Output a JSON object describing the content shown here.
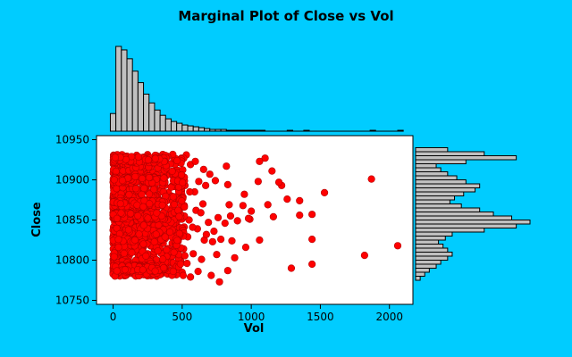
{
  "chart_data": {
    "type": "scatter",
    "title": "Marginal Plot of Close vs Vol",
    "xlabel": "Vol",
    "ylabel": "Close",
    "xlim": [
      -120,
      2170
    ],
    "ylim": [
      10745,
      10955
    ],
    "xticks": [
      "0",
      "500",
      "1000",
      "1500",
      "2000"
    ],
    "yticks": [
      "10750",
      "10800",
      "10850",
      "10900",
      "10950"
    ],
    "grid": false,
    "legend": "none",
    "colors": {
      "background": "#00ccff",
      "points": "#ff0000",
      "bars": "#c0c0c0"
    },
    "top_histogram": {
      "bin_width": 40,
      "bin_start": -20,
      "counts": [
        20,
        96,
        92,
        82,
        68,
        55,
        42,
        32,
        24,
        18,
        14,
        11,
        9,
        7,
        6,
        5,
        4,
        3,
        2,
        2,
        2,
        1,
        1,
        1,
        1,
        1,
        1,
        1,
        0,
        0,
        0,
        0,
        1,
        0,
        0,
        1,
        0,
        0,
        0,
        0,
        0,
        0,
        0,
        0,
        0,
        0,
        0,
        1,
        0,
        0,
        0,
        0,
        1
      ]
    },
    "right_histogram": {
      "bin_width": 5,
      "bin_start": 10775,
      "counts": [
        2,
        4,
        6,
        9,
        11,
        14,
        16,
        14,
        12,
        10,
        13,
        16,
        30,
        44,
        50,
        42,
        34,
        28,
        20,
        15,
        17,
        21,
        26,
        28,
        22,
        18,
        14,
        11,
        9,
        22,
        44,
        30,
        14
      ]
    },
    "points": [
      [
        1870,
        10901
      ],
      [
        2060,
        10818
      ],
      [
        1820,
        10806
      ],
      [
        1530,
        10884
      ],
      [
        1440,
        10857
      ],
      [
        1440,
        10826
      ],
      [
        1440,
        10795
      ],
      [
        1350,
        10874
      ],
      [
        1350,
        10856
      ],
      [
        1290,
        10790
      ],
      [
        1260,
        10876
      ],
      [
        1220,
        10893
      ],
      [
        1200,
        10897
      ],
      [
        1160,
        10854
      ],
      [
        1150,
        10911
      ],
      [
        1120,
        10869
      ],
      [
        1100,
        10927
      ],
      [
        1060,
        10923
      ],
      [
        1060,
        10825
      ],
      [
        1050,
        10898
      ],
      [
        1000,
        10861
      ],
      [
        990,
        10851
      ],
      [
        980,
        10852
      ],
      [
        960,
        10816
      ],
      [
        950,
        10882
      ],
      [
        940,
        10868
      ],
      [
        900,
        10849
      ],
      [
        880,
        10803
      ],
      [
        860,
        10824
      ],
      [
        850,
        10855
      ],
      [
        840,
        10869
      ],
      [
        830,
        10894
      ],
      [
        830,
        10787
      ],
      [
        820,
        10917
      ],
      [
        810,
        10846
      ],
      [
        780,
        10826
      ],
      [
        770,
        10773
      ],
      [
        760,
        10853
      ],
      [
        750,
        10807
      ],
      [
        740,
        10899
      ],
      [
        730,
        10836
      ],
      [
        720,
        10823
      ],
      [
        710,
        10781
      ],
      [
        700,
        10907
      ],
      [
        690,
        10847
      ],
      [
        670,
        10893
      ],
      [
        660,
        10825
      ],
      [
        650,
        10870
      ],
      [
        640,
        10801
      ],
      [
        620,
        10898
      ],
      [
        610,
        10839
      ],
      [
        600,
        10862
      ],
      [
        590,
        10885
      ],
      [
        580,
        10808
      ],
      [
        560,
        10919
      ],
      [
        560,
        10779
      ],
      [
        550,
        10850
      ],
      [
        540,
        10829
      ],
      [
        530,
        10931
      ],
      [
        520,
        10893
      ],
      [
        510,
        10814
      ],
      [
        500,
        10866
      ],
      [
        480,
        10784
      ],
      [
        470,
        10910
      ],
      [
        460,
        10842
      ],
      [
        440,
        10925
      ],
      [
        430,
        10866
      ],
      [
        420,
        10799
      ],
      [
        400,
        10884
      ],
      [
        390,
        10831
      ],
      [
        380,
        10909
      ],
      [
        360,
        10852
      ],
      [
        350,
        10783
      ],
      [
        340,
        10917
      ],
      [
        330,
        10876
      ],
      [
        320,
        10814
      ],
      [
        300,
        10896
      ],
      [
        290,
        10842
      ],
      [
        280,
        10781
      ],
      [
        270,
        10925
      ],
      [
        260,
        10867
      ],
      [
        250,
        10808
      ],
      [
        240,
        10889
      ],
      [
        230,
        10846
      ],
      [
        220,
        10791
      ],
      [
        210,
        10918
      ],
      [
        200,
        10872
      ],
      [
        190,
        10830
      ],
      [
        180,
        10902
      ],
      [
        170,
        10855
      ],
      [
        160,
        10785
      ],
      [
        150,
        10928
      ],
      [
        140,
        10881
      ],
      [
        130,
        10820
      ],
      [
        120,
        10897
      ],
      [
        110,
        10849
      ],
      [
        100,
        10796
      ],
      [
        90,
        10926
      ],
      [
        80,
        10870
      ],
      [
        70,
        10836
      ],
      [
        60,
        10904
      ],
      [
        50,
        10858
      ],
      [
        40,
        10791
      ],
      [
        30,
        10927
      ],
      [
        20,
        10877
      ],
      [
        15,
        10843
      ],
      [
        10,
        10890
      ],
      [
        5,
        10819
      ],
      [
        0,
        10856
      ],
      [
        0,
        10784
      ],
      [
        35,
        10812
      ],
      [
        55,
        10788
      ],
      [
        75,
        10895
      ],
      [
        95,
        10863
      ],
      [
        115,
        10826
      ],
      [
        135,
        10910
      ],
      [
        155,
        10847
      ],
      [
        175,
        10797
      ],
      [
        195,
        10885
      ],
      [
        215,
        10862
      ],
      [
        235,
        10924
      ],
      [
        255,
        10832
      ],
      [
        275,
        10860
      ],
      [
        295,
        10806
      ],
      [
        315,
        10930
      ],
      [
        335,
        10851
      ],
      [
        355,
        10824
      ],
      [
        375,
        10893
      ],
      [
        395,
        10812
      ],
      [
        415,
        10861
      ],
      [
        435,
        10788
      ],
      [
        455,
        10879
      ],
      [
        475,
        10827
      ],
      [
        495,
        10927
      ],
      [
        515,
        10868
      ],
      [
        535,
        10796
      ],
      [
        555,
        10885
      ],
      [
        575,
        10841
      ],
      [
        595,
        10923
      ],
      [
        615,
        10786
      ],
      [
        635,
        10859
      ],
      [
        655,
        10913
      ],
      [
        675,
        10832
      ],
      [
        25,
        10866
      ],
      [
        45,
        10848
      ],
      [
        65,
        10879
      ],
      [
        85,
        10852
      ],
      [
        105,
        10874
      ],
      [
        125,
        10838
      ],
      [
        145,
        10868
      ],
      [
        165,
        10844
      ],
      [
        185,
        10862
      ],
      [
        205,
        10850
      ],
      [
        225,
        10872
      ],
      [
        245,
        10835
      ],
      [
        265,
        10854
      ],
      [
        285,
        10866
      ],
      [
        305,
        10845
      ],
      [
        325,
        10858
      ],
      [
        345,
        10837
      ],
      [
        365,
        10869
      ],
      [
        385,
        10848
      ],
      [
        405,
        10856
      ],
      [
        425,
        10844
      ],
      [
        445,
        10852
      ]
    ]
  }
}
